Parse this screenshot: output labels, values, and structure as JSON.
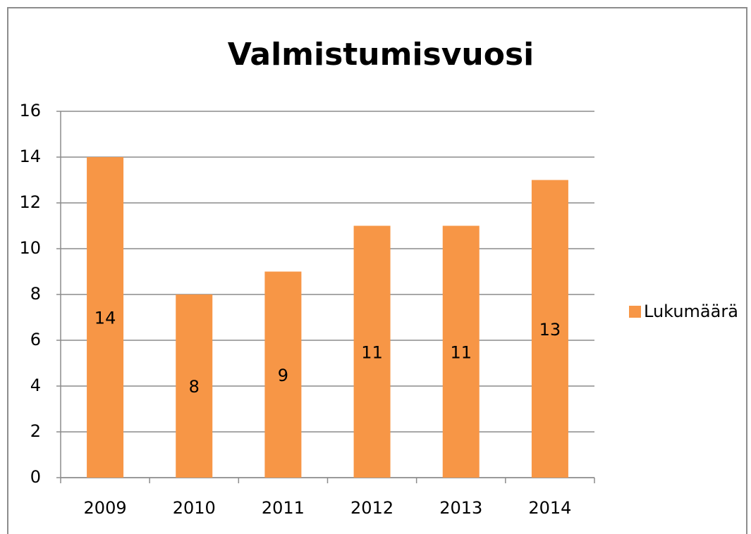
{
  "chart_data": {
    "type": "bar",
    "title": "Valmistumisvuosi",
    "categories": [
      "2009",
      "2010",
      "2011",
      "2012",
      "2013",
      "2014"
    ],
    "series": [
      {
        "name": "Lukumäärä",
        "color": "#f79646",
        "values": [
          14,
          8,
          9,
          11,
          11,
          13
        ]
      }
    ],
    "ylim": [
      0,
      16
    ],
    "yticks": [
      0,
      2,
      4,
      6,
      8,
      10,
      12,
      14,
      16
    ],
    "grid": true,
    "legend": "right"
  }
}
